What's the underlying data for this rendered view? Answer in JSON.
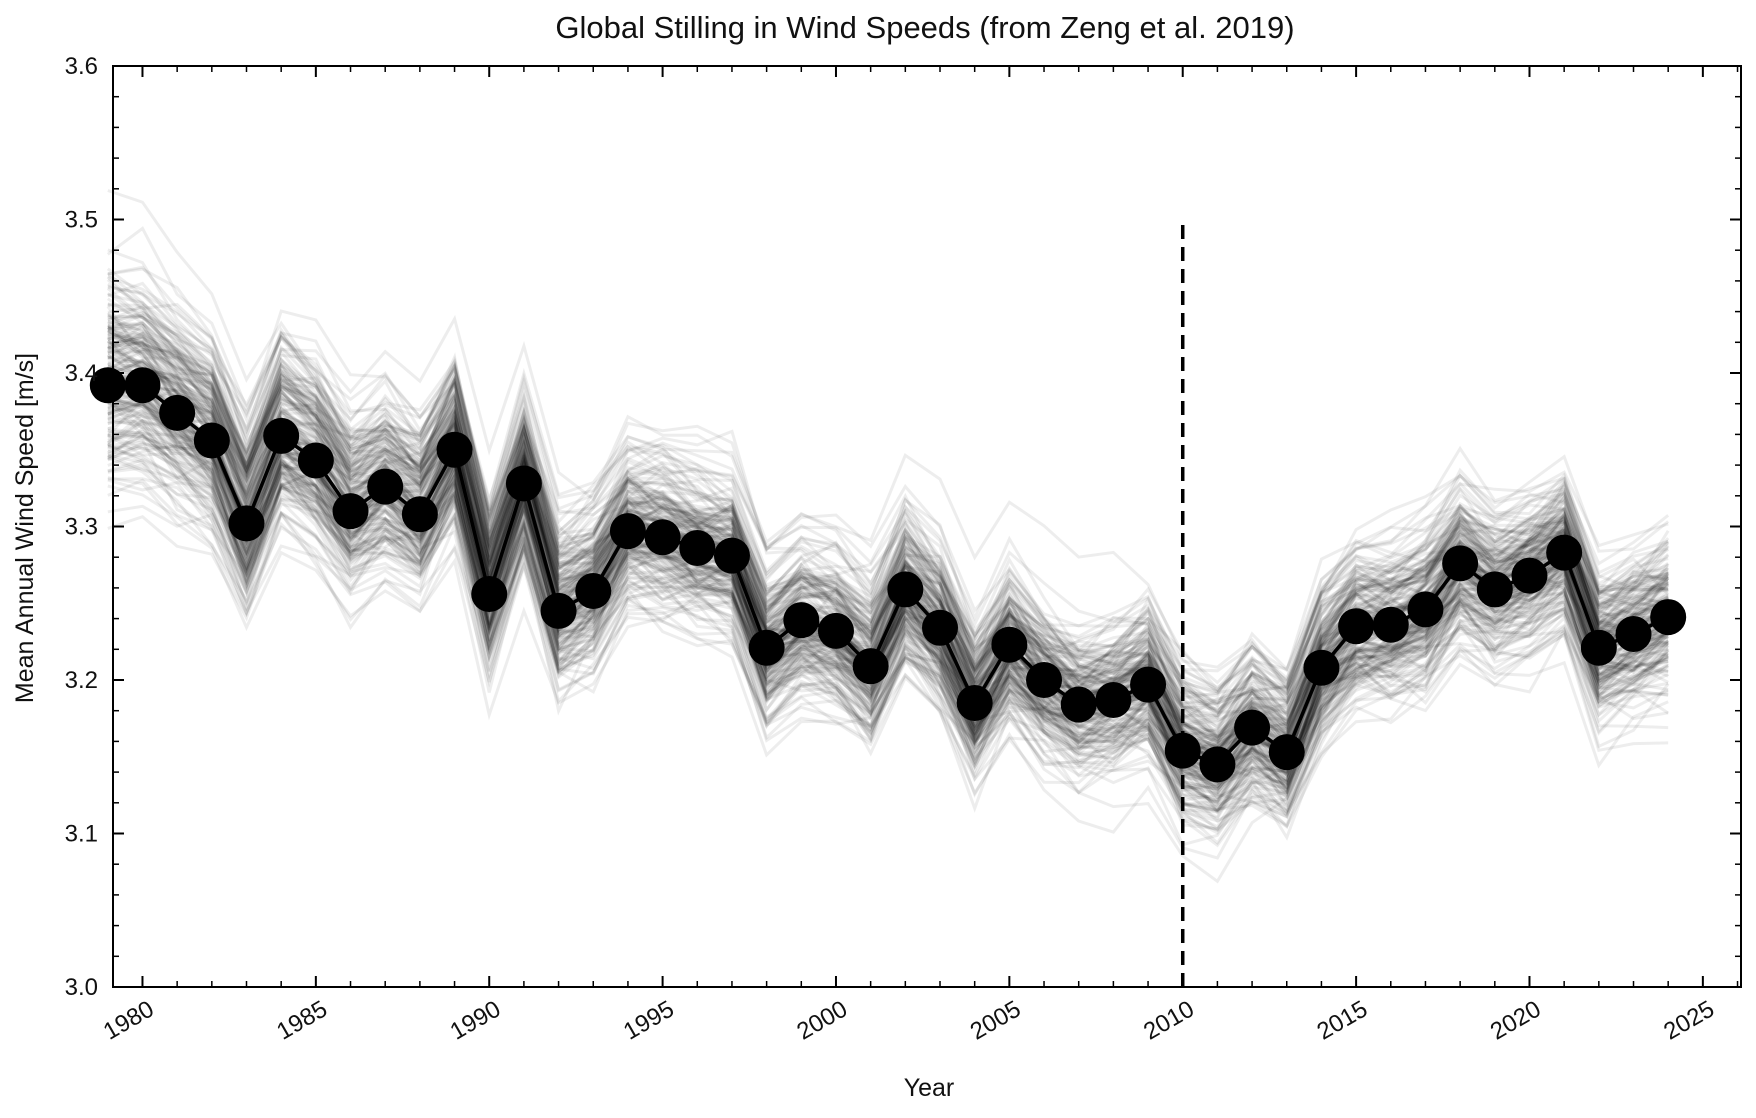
{
  "chart_data": {
    "type": "line",
    "title": "Global Stilling in Wind Speeds (from Zeng et al. 2019)",
    "xlabel": "Year",
    "ylabel": "Mean Annual Wind Speed [m/s]",
    "xlim": [
      1979.15,
      2026.1
    ],
    "ylim": [
      3.0,
      3.6
    ],
    "x_major_ticks": [
      1980,
      1985,
      1990,
      1995,
      2000,
      2005,
      2010,
      2015,
      2020,
      2025
    ],
    "x_tick_labels": [
      "1980",
      "1985",
      "1990",
      "1995",
      "2000",
      "2005",
      "2010",
      "2015",
      "2020",
      "2025"
    ],
    "y_major_ticks": [
      3.0,
      3.1,
      3.2,
      3.3,
      3.4,
      3.5,
      3.6
    ],
    "y_tick_labels": [
      "3.0",
      "3.1",
      "3.2",
      "3.3",
      "3.4",
      "3.5",
      "3.6"
    ],
    "grid": false,
    "legend": "none",
    "series": [
      {
        "role": "mean",
        "color": "#000000",
        "marker": "circle",
        "x": [
          1979,
          1980,
          1981,
          1982,
          1983,
          1984,
          1985,
          1986,
          1987,
          1988,
          1989,
          1990,
          1991,
          1992,
          1993,
          1994,
          1995,
          1996,
          1997,
          1998,
          1999,
          2000,
          2001,
          2002,
          2003,
          2004,
          2005,
          2006,
          2007,
          2008,
          2009,
          2010,
          2011,
          2012,
          2013,
          2014,
          2015,
          2016,
          2017,
          2018,
          2019,
          2020,
          2021,
          2022,
          2023,
          2024
        ],
        "values": [
          3.392,
          3.392,
          3.374,
          3.356,
          3.302,
          3.359,
          3.343,
          3.31,
          3.326,
          3.308,
          3.35,
          3.256,
          3.328,
          3.245,
          3.258,
          3.297,
          3.293,
          3.286,
          3.281,
          3.221,
          3.239,
          3.232,
          3.209,
          3.259,
          3.234,
          3.185,
          3.223,
          3.2,
          3.184,
          3.187,
          3.197,
          3.154,
          3.145,
          3.169,
          3.153,
          3.208,
          3.235,
          3.236,
          3.246,
          3.276,
          3.259,
          3.268,
          3.283,
          3.221,
          3.23,
          3.241
        ]
      },
      {
        "role": "ensemble",
        "color": "#000000",
        "opacity": 0.07,
        "members": 200,
        "spread_sd": 0.045
      }
    ],
    "annotations": [
      {
        "type": "vertical-dashed-line",
        "x": 2010,
        "y_from": 3.0,
        "y_to": 3.5,
        "color": "#000000"
      }
    ]
  }
}
